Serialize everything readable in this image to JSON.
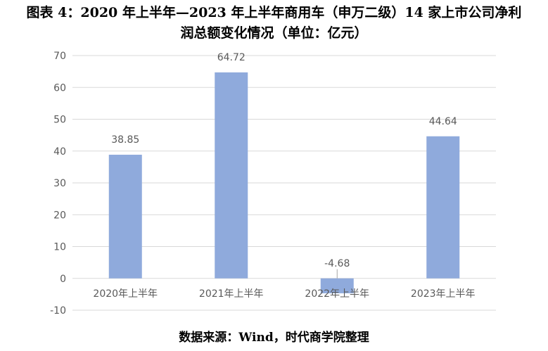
{
  "title": {
    "line1": "图表 4：2020 年上半年—2023 年上半年商用车（申万二级）14 家上市公司净利",
    "line2": "润总额变化情况（单位：亿元）"
  },
  "source": "数据来源：Wind，时代商学院整理",
  "chart_data": {
    "type": "bar",
    "title": "图表 4：2020 年上半年—2023 年上半年商用车（申万二级）14 家上市公司净利润总额变化情况（单位：亿元）",
    "categories": [
      "2020年上半年",
      "2021年上半年",
      "2022年上半年",
      "2023年上半年"
    ],
    "values": [
      38.85,
      64.72,
      -4.68,
      44.64
    ],
    "data_labels": [
      "38.85",
      "64.72",
      "-4.68",
      "44.64"
    ],
    "ylim": [
      -10,
      70
    ],
    "yticks": [
      -10,
      0,
      10,
      20,
      30,
      40,
      50,
      60,
      70
    ],
    "xlabel": "",
    "ylabel": "",
    "grid": true,
    "legend": "none",
    "bar_color": "#8faadc",
    "grid_color": "#d9d9d9",
    "label_color": "#595959"
  }
}
